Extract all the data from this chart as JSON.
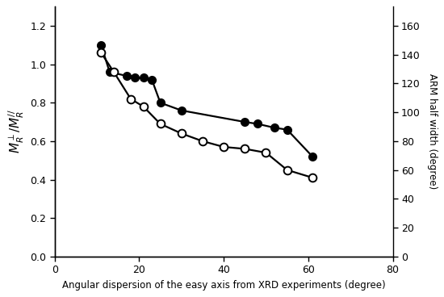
{
  "filled_x": [
    11,
    13,
    17,
    19,
    21,
    23,
    25,
    30,
    45,
    48,
    52,
    55,
    61
  ],
  "filled_y": [
    1.1,
    0.96,
    0.94,
    0.93,
    0.93,
    0.92,
    0.8,
    0.76,
    0.7,
    0.69,
    0.67,
    0.66,
    0.52
  ],
  "open_x": [
    11,
    14,
    18,
    21,
    25,
    30,
    35,
    40,
    45,
    50,
    55,
    61
  ],
  "open_y": [
    1.06,
    0.96,
    0.82,
    0.78,
    0.69,
    0.64,
    0.6,
    0.57,
    0.56,
    0.54,
    0.45,
    0.41
  ],
  "ylabel_left": "$M_R^{\\perp}/M_R^{//}$",
  "ylabel_right": "ARM half width (degree)",
  "xlabel": "Angular dispersion of the easy axis from XRD experiments (degree)",
  "xlim": [
    0,
    80
  ],
  "ylim_left": [
    0,
    1.3
  ],
  "ylim_right": [
    0,
    173.3
  ],
  "xticks": [
    0,
    20,
    40,
    60,
    80
  ],
  "yticks_left": [
    0,
    0.2,
    0.4,
    0.6,
    0.8,
    1.0,
    1.2
  ],
  "yticks_right": [
    0,
    20,
    40,
    60,
    80,
    100,
    120,
    140,
    160
  ],
  "line_color": "#000000",
  "marker_size": 7,
  "line_width": 1.6,
  "background_color": "#ffffff"
}
